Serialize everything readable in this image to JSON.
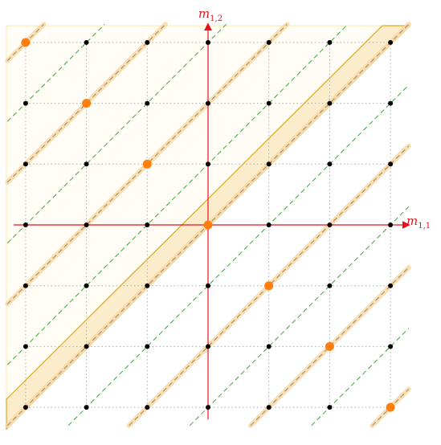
{
  "axes": {
    "x_label": {
      "base": "m",
      "sub": "1,1"
    },
    "y_label": {
      "base": "m",
      "sub": "1,2"
    }
  }
}
